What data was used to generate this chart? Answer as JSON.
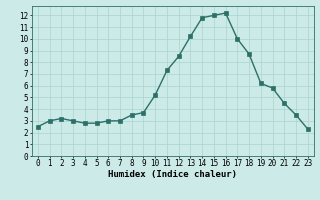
{
  "x": [
    0,
    1,
    2,
    3,
    4,
    5,
    6,
    7,
    8,
    9,
    10,
    11,
    12,
    13,
    14,
    15,
    16,
    17,
    18,
    19,
    20,
    21,
    22,
    23
  ],
  "y": [
    2.5,
    3.0,
    3.2,
    3.0,
    2.8,
    2.8,
    3.0,
    3.0,
    3.5,
    3.7,
    5.2,
    7.3,
    8.5,
    10.2,
    11.8,
    12.0,
    12.2,
    10.0,
    8.7,
    6.2,
    5.8,
    4.5,
    3.5,
    2.3
  ],
  "xlabel": "Humidex (Indice chaleur)",
  "bg_color": "#cceae8",
  "line_color": "#2d7068",
  "grid_color": "#aad4d0",
  "xlim": [
    -0.5,
    23.5
  ],
  "ylim": [
    0,
    12.8
  ],
  "yticks": [
    0,
    1,
    2,
    3,
    4,
    5,
    6,
    7,
    8,
    9,
    10,
    11,
    12
  ],
  "xticks": [
    0,
    1,
    2,
    3,
    4,
    5,
    6,
    7,
    8,
    9,
    10,
    11,
    12,
    13,
    14,
    15,
    16,
    17,
    18,
    19,
    20,
    21,
    22,
    23
  ],
  "tick_fontsize": 5.5,
  "xlabel_fontsize": 6.5,
  "marker_size": 2.2,
  "line_width": 1.0
}
